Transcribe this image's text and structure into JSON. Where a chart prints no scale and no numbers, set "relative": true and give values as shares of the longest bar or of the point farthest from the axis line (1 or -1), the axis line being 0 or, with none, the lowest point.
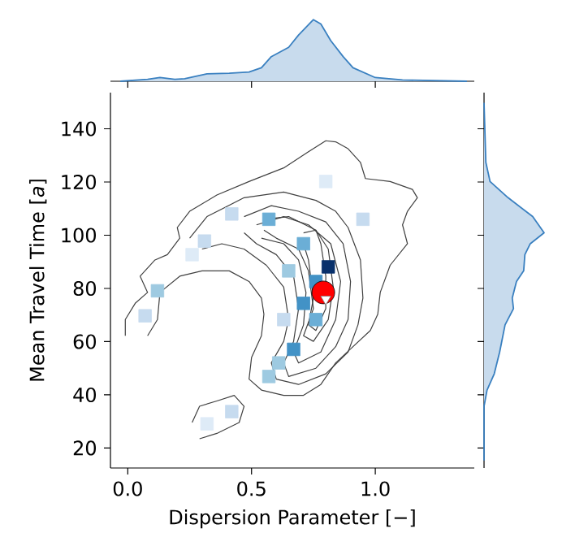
{
  "chart_data": [
    {
      "type": "line",
      "xlabel": "Dispersion Parameter [−]",
      "ylabel": "Mean Travel Time [*a*]",
      "xlim": [
        -0.07,
        1.4
      ],
      "ylim": [
        12.5,
        153.6
      ],
      "xticks": [
        {
          "value": 0,
          "label": "0.0"
        },
        {
          "value": 0.5,
          "label": "0.5"
        },
        {
          "value": 1,
          "label": "1.0"
        }
      ],
      "yticks": [
        20,
        40,
        60,
        80,
        100,
        120,
        140
      ],
      "grid": false,
      "series": [
        {
          "type": "scatter",
          "marker": "square",
          "x": [
            0.81,
            0.12,
            0.07,
            0.57,
            0.71,
            0.76,
            0.76,
            0.71,
            0.67,
            0.61,
            0.57,
            0.42,
            0.32,
            0.31,
            0.26,
            0.95,
            0.8,
            0.42,
            0.65,
            0.63
          ],
          "values": [
            88.1,
            79.1,
            69.7,
            106,
            96.8,
            82.6,
            68.3,
            74.4,
            57.1,
            52,
            46.9,
            33.7,
            29.1,
            97.8,
            92.7,
            106,
            120.2,
            108,
            86.6,
            68.3
          ],
          "colors": [
            "#08306b",
            "#9ecae1",
            "#c6dbef",
            "#6baed6",
            "#6baed6",
            "#4292c6",
            "#6baed6",
            "#4292c6",
            "#4292c6",
            "#9ecae1",
            "#9ecae1",
            "#c6dbef",
            "#deebf7",
            "#c6dbef",
            "#deebf7",
            "#c6dbef",
            "#deebf7",
            "#c6dbef",
            "#9ecae1",
            "#c6dbef"
          ]
        },
        {
          "type": "line",
          "color": "#404040",
          "x": [
            -0.01,
            -0.01,
            0.03,
            0.08,
            0.05,
            0.11,
            0.16,
            0.21,
            0.2,
            0.25,
            0.36,
            0.49,
            0.63,
            0.73,
            0.8,
            0.84,
            0.89,
            0.94,
            0.96,
            1.06,
            1.15,
            1.17,
            1.13,
            1.11,
            1.13,
            1.06,
            1.02,
            1.01,
            0.98,
            0.91,
            0.84,
            0.78,
            0.71,
            0.63,
            0.54,
            0.49,
            0.5,
            0.54,
            0.55,
            0.54,
            0.49,
            0.41,
            0.3,
            0.21,
            0.13,
            0.12,
            0.08
          ],
          "values": [
            62.2,
            68.3,
            74.4,
            78.5,
            84.6,
            90.7,
            92.7,
            98.9,
            102.9,
            109.0,
            115.1,
            120.2,
            125.3,
            131.4,
            135.5,
            135.1,
            132.5,
            127.4,
            121.3,
            120.2,
            117.2,
            114.1,
            109.0,
            103.9,
            96.8,
            88.7,
            78.5,
            70.3,
            64.2,
            58.1,
            52.0,
            43.9,
            39.8,
            39.8,
            41.8,
            45.9,
            54.0,
            62.2,
            70.3,
            76.4,
            82.6,
            86.6,
            86.6,
            84.6,
            78.5,
            68.3,
            62.2
          ]
        },
        {
          "type": "line",
          "color": "#404040",
          "x": [
            0.26,
            0.29,
            0.36,
            0.43,
            0.47,
            0.45,
            0.36,
            0.29
          ],
          "values": [
            29.6,
            35.7,
            37.7,
            39.8,
            35.7,
            29.6,
            25.5,
            23.5
          ]
        },
        {
          "type": "line",
          "color": "#404040",
          "x": [
            0.25,
            0.32,
            0.47,
            0.63,
            0.76,
            0.84,
            0.89,
            0.94,
            0.95,
            0.93,
            0.89,
            0.8,
            0.69,
            0.6,
            0.58,
            0.63,
            0.65,
            0.63,
            0.56,
            0.47,
            0.38,
            0.3
          ],
          "values": [
            98.9,
            107.0,
            114.1,
            116.2,
            113.1,
            109.0,
            102.9,
            90.7,
            76.4,
            66.3,
            56.1,
            47.9,
            43.9,
            45.9,
            52.0,
            60.1,
            68.3,
            80.5,
            88.7,
            94.8,
            96.8,
            94.8
          ]
        },
        {
          "type": "line",
          "color": "#404040",
          "x": [
            0.47,
            0.58,
            0.69,
            0.8,
            0.87,
            0.9,
            0.89,
            0.84,
            0.76,
            0.65,
            0.63,
            0.67,
            0.69,
            0.67,
            0.6,
            0.52,
            0.47
          ],
          "values": [
            107.0,
            111.1,
            109.0,
            105.0,
            96.8,
            82.6,
            68.3,
            58.1,
            50.0,
            46.9,
            52.0,
            60.1,
            72.4,
            84.6,
            92.7,
            96.8,
            100.9
          ]
        },
        {
          "type": "line",
          "color": "#404040",
          "x": [
            0.52,
            0.63,
            0.73,
            0.82,
            0.86,
            0.84,
            0.78,
            0.69,
            0.67,
            0.71,
            0.72,
            0.69,
            0.63,
            0.54
          ],
          "values": [
            103.9,
            107.0,
            103.9,
            96.8,
            82.6,
            68.3,
            56.1,
            52.0,
            56.1,
            66.3,
            78.5,
            90.7,
            96.8,
            98.9
          ]
        },
        {
          "type": "line",
          "color": "#404040",
          "x": [
            0.55,
            0.65,
            0.76,
            0.81,
            0.83,
            0.81,
            0.75,
            0.71,
            0.75,
            0.73,
            0.69,
            0.6,
            0.55
          ],
          "values": [
            106.0,
            107.0,
            101.9,
            94.8,
            80.5,
            68.3,
            60.1,
            62.2,
            72.4,
            86.6,
            94.8,
            98.9,
            101.9
          ]
        },
        {
          "type": "line",
          "color": "#404040",
          "x": [
            0.71,
            0.76,
            0.78,
            0.8,
            0.8,
            0.76,
            0.73,
            0.75,
            0.73,
            0.71
          ],
          "values": [
            100.9,
            101.9,
            96.8,
            84.6,
            72.4,
            64.2,
            66.3,
            76.4,
            90.7,
            96.8
          ]
        },
        {
          "type": "scatter",
          "marker": "circle",
          "color": "#ff0000",
          "x": [
            0.79
          ],
          "values": [
            78.5
          ]
        },
        {
          "type": "scatter",
          "marker": "triangle",
          "color": "#ffffff",
          "x": [
            0.8
          ],
          "values": [
            76
          ]
        }
      ]
    },
    {
      "type": "area",
      "relative": true,
      "tick_labels": false,
      "xlim": [
        -0.07,
        1.4
      ],
      "xticks": [
        0,
        0.5,
        1
      ],
      "series": [
        {
          "color": "#3a80c0",
          "x": [
            -0.03,
            0.08,
            0.13,
            0.19,
            0.23,
            0.32,
            0.41,
            0.49,
            0.54,
            0.58,
            0.65,
            0.69,
            0.75,
            0.78,
            0.82,
            0.87,
            0.91,
            1.0,
            1.11,
            1.37
          ],
          "values": [
            0,
            0.03,
            0.06,
            0.03,
            0.04,
            0.12,
            0.13,
            0.15,
            0.22,
            0.4,
            0.55,
            0.75,
            1,
            0.93,
            0.66,
            0.4,
            0.22,
            0.06,
            0.02,
            0
          ]
        }
      ]
    },
    {
      "type": "area",
      "relative": true,
      "orientation": "horizontal",
      "tick_labels": false,
      "ylim": [
        12.5,
        153.6
      ],
      "yticks": [
        20,
        40,
        60,
        80,
        100,
        120,
        140
      ],
      "series": [
        {
          "color": "#3a80c0",
          "x": [
            149.8,
            127.4,
            120.2,
            114.1,
            107.0,
            100.9,
            96.8,
            92.7,
            86.6,
            82.6,
            76.4,
            72.4,
            66.3,
            56.1,
            47.9,
            41.8,
            35.7,
            15.3
          ],
          "values": [
            0,
            0.03,
            0.1,
            0.4,
            0.81,
            1,
            0.77,
            0.68,
            0.66,
            0.54,
            0.47,
            0.49,
            0.35,
            0.26,
            0.17,
            0.05,
            0,
            0
          ]
        }
      ]
    }
  ]
}
